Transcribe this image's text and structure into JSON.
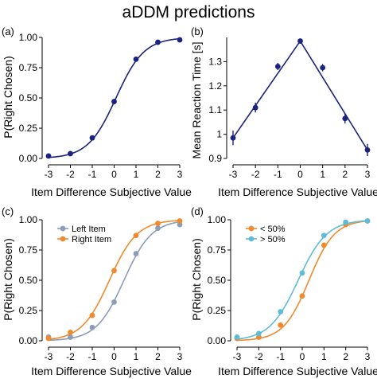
{
  "title": "aDDM predictions",
  "colors": {
    "navy": "#1a237e",
    "left_item": "#8c9db8",
    "right_item": "#ef8a2e",
    "lt50": "#ef8a2e",
    "gt50": "#5fbcd6"
  },
  "chart_data": [
    {
      "panel": "(a)",
      "type": "line",
      "xlabel": "Item Difference Subjective Value",
      "ylabel": "P(Right Chosen)",
      "x": [
        -3,
        -2,
        -1,
        0,
        1,
        2,
        3
      ],
      "xticks": [
        "-3",
        "-2",
        "-1",
        "0",
        "1",
        "2",
        "3"
      ],
      "yticks": [
        "0.00",
        "0.25",
        "0.50",
        "0.75",
        "1.00"
      ],
      "xlim": [
        -3,
        3
      ],
      "ylim": [
        0,
        1
      ],
      "series": [
        {
          "color": "#1a237e",
          "values": [
            0.02,
            0.04,
            0.17,
            0.47,
            0.82,
            0.96,
            0.98
          ]
        }
      ]
    },
    {
      "panel": "(b)",
      "type": "line",
      "xlabel": "Item Difference Subjective Value",
      "ylabel": "Mean Reaction Time [s]",
      "x": [
        -3,
        -2,
        -1,
        0,
        1,
        2,
        3
      ],
      "xticks": [
        "-3",
        "-2",
        "-1",
        "0",
        "1",
        "2",
        "3"
      ],
      "yticks": [
        "0.9",
        "1",
        "1.1",
        "1.2",
        "1.3"
      ],
      "xlim": [
        -3,
        3
      ],
      "ylim": [
        0.9,
        1.4
      ],
      "series": [
        {
          "color": "#1a237e",
          "values": [
            0.985,
            1.11,
            1.28,
            1.385,
            1.275,
            1.065,
            0.935
          ],
          "err": [
            0.03,
            0.02,
            0.015,
            0.005,
            0.015,
            0.02,
            0.025
          ]
        }
      ]
    },
    {
      "panel": "(c)",
      "type": "line",
      "xlabel": "Item Difference Subjective Value",
      "ylabel": "P(Right Chosen)",
      "x": [
        -3,
        -2,
        -1,
        0,
        1,
        2,
        3
      ],
      "xticks": [
        "-3",
        "-2",
        "-1",
        "0",
        "1",
        "2",
        "3"
      ],
      "yticks": [
        "0.00",
        "0.25",
        "0.50",
        "0.75",
        "1.00"
      ],
      "xlim": [
        -3,
        3
      ],
      "ylim": [
        0,
        1
      ],
      "legend": "top-left",
      "series": [
        {
          "name": "Left Item",
          "color": "#8c9db8",
          "values": [
            0.03,
            0.03,
            0.11,
            0.32,
            0.72,
            0.93,
            0.96
          ]
        },
        {
          "name": "Right Item",
          "color": "#ef8a2e",
          "values": [
            0.02,
            0.07,
            0.21,
            0.58,
            0.87,
            0.97,
            0.99
          ]
        }
      ]
    },
    {
      "panel": "(d)",
      "type": "line",
      "xlabel": "Item Difference Subjective Value",
      "ylabel": "P(Right Chosen)",
      "x": [
        -3,
        -2,
        -1,
        0,
        1,
        2,
        3
      ],
      "xticks": [
        "-3",
        "-2",
        "-1",
        "0",
        "1",
        "2",
        "3"
      ],
      "yticks": [
        "0.00",
        "0.25",
        "0.50",
        "0.75",
        "1.00"
      ],
      "xlim": [
        -3,
        3
      ],
      "ylim": [
        0,
        1
      ],
      "legend": "top-left",
      "series": [
        {
          "name": "< 50%",
          "color": "#ef8a2e",
          "values": [
            0.02,
            0.03,
            0.13,
            0.37,
            0.79,
            0.96,
            0.99
          ]
        },
        {
          "name": "> 50%",
          "color": "#5fbcd6",
          "values": [
            0.03,
            0.06,
            0.24,
            0.56,
            0.87,
            0.98,
            0.99
          ]
        }
      ]
    }
  ]
}
